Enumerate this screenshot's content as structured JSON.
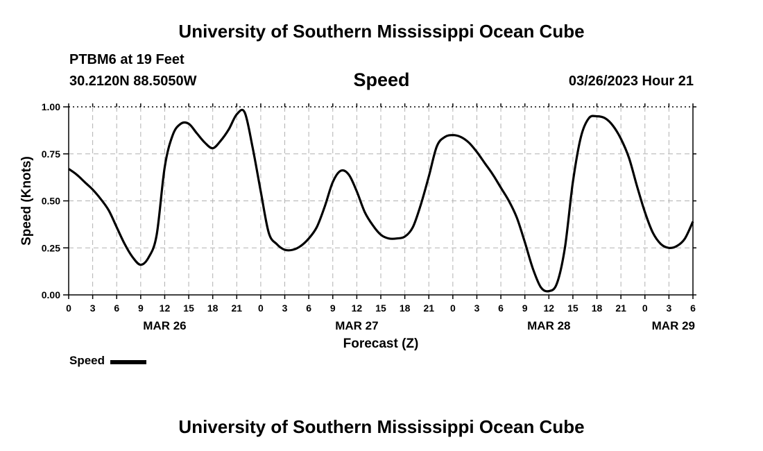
{
  "header": {
    "title": "University of Southern Mississippi Ocean Cube",
    "station": "PTBM6 at 19 Feet",
    "coordinates": "30.2120N  88.5050W",
    "subtitle": "Speed",
    "datetime": "03/26/2023 Hour 21"
  },
  "footer": {
    "title": "University of Southern Mississippi Ocean Cube"
  },
  "legend": {
    "label": "Speed",
    "color": "#000000"
  },
  "chart_data": {
    "type": "line",
    "title": "Speed",
    "xlabel": "Forecast (Z)",
    "ylabel": "Speed (Knots)",
    "xlim": [
      0,
      78
    ],
    "ylim": [
      0,
      1.0
    ],
    "grid": true,
    "x_ticks": [
      0,
      3,
      6,
      9,
      12,
      15,
      18,
      21,
      24,
      27,
      30,
      33,
      36,
      39,
      42,
      45,
      48,
      51,
      54,
      57,
      60,
      63,
      66,
      69,
      72,
      75,
      78
    ],
    "x_tick_labels": [
      "0",
      "3",
      "6",
      "9",
      "12",
      "15",
      "18",
      "21",
      "0",
      "3",
      "6",
      "9",
      "12",
      "15",
      "18",
      "21",
      "0",
      "3",
      "6",
      "9",
      "12",
      "15",
      "18",
      "21",
      "0",
      "3",
      "6"
    ],
    "y_ticks": [
      0,
      0.25,
      0.5,
      0.75,
      1.0
    ],
    "y_tick_labels": [
      "0.00",
      "0.25",
      "0.50",
      "0.75",
      "1.00"
    ],
    "date_labels": [
      {
        "x": 12,
        "label": "MAR 26"
      },
      {
        "x": 36,
        "label": "MAR 27"
      },
      {
        "x": 60,
        "label": "MAR 28"
      },
      {
        "x": 78,
        "label": "MAR 29"
      }
    ],
    "series": [
      {
        "name": "Speed",
        "x": [
          0,
          1,
          2,
          3,
          4,
          5,
          6,
          7,
          8,
          9,
          10,
          11,
          12,
          13,
          14,
          15,
          16,
          17,
          18,
          19,
          20,
          21,
          22,
          23,
          24,
          25,
          26,
          27,
          28,
          29,
          30,
          31,
          32,
          33,
          34,
          35,
          36,
          37,
          38,
          39,
          40,
          41,
          42,
          43,
          44,
          45,
          46,
          47,
          48,
          49,
          50,
          51,
          52,
          53,
          54,
          55,
          56,
          57,
          58,
          59,
          60,
          61,
          62,
          63,
          64,
          65,
          66,
          67,
          68,
          69,
          70,
          71,
          72,
          73,
          74,
          75,
          76,
          77,
          78
        ],
        "values": [
          0.67,
          0.64,
          0.6,
          0.56,
          0.51,
          0.45,
          0.36,
          0.27,
          0.2,
          0.16,
          0.2,
          0.32,
          0.68,
          0.85,
          0.91,
          0.91,
          0.86,
          0.81,
          0.78,
          0.82,
          0.88,
          0.96,
          0.97,
          0.78,
          0.55,
          0.33,
          0.27,
          0.24,
          0.24,
          0.26,
          0.3,
          0.36,
          0.47,
          0.6,
          0.66,
          0.64,
          0.55,
          0.44,
          0.37,
          0.32,
          0.3,
          0.3,
          0.31,
          0.36,
          0.48,
          0.63,
          0.79,
          0.84,
          0.85,
          0.84,
          0.81,
          0.76,
          0.7,
          0.64,
          0.57,
          0.5,
          0.41,
          0.28,
          0.14,
          0.04,
          0.02,
          0.06,
          0.25,
          0.6,
          0.84,
          0.94,
          0.95,
          0.94,
          0.9,
          0.83,
          0.73,
          0.58,
          0.44,
          0.33,
          0.27,
          0.25,
          0.26,
          0.3,
          0.39
        ]
      }
    ]
  }
}
